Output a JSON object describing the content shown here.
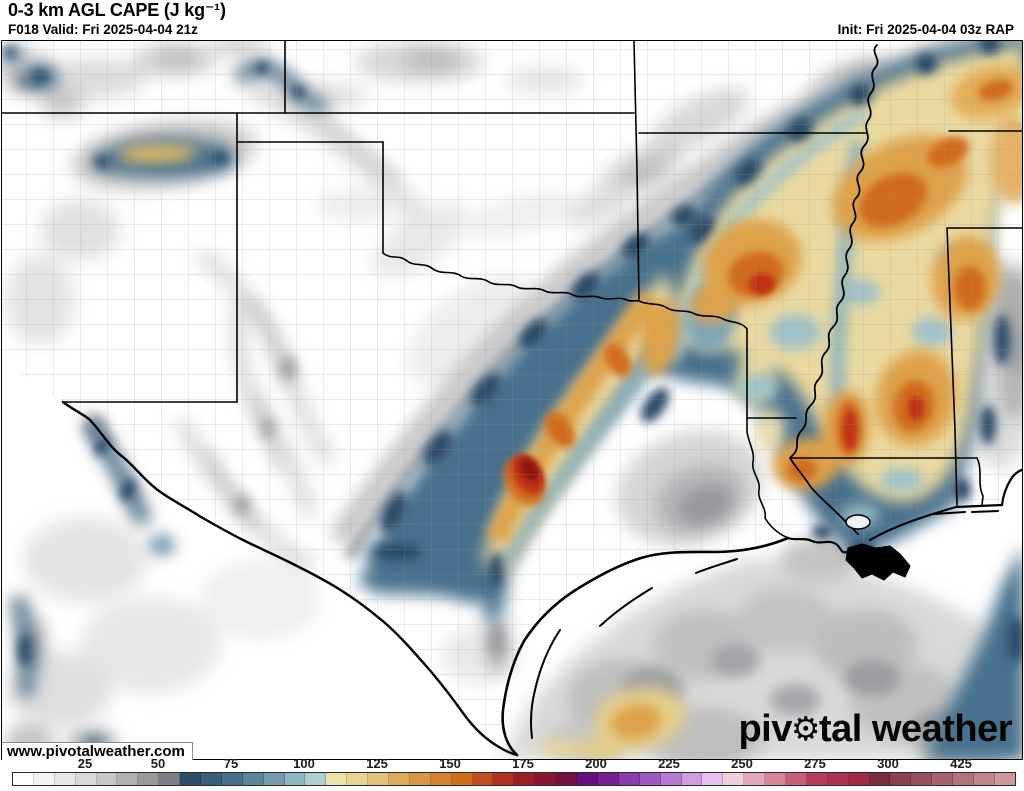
{
  "header": {
    "title": "0-3 km AGL CAPE (J kg⁻¹)",
    "valid": "F018 Valid: Fri 2025-04-04 21z",
    "init": "Init: Fri 2025-04-04 03z RAP"
  },
  "watermark": "www.pivotalweather.com",
  "logo": {
    "prefix": "piv",
    "gear_icon": "⚙",
    "suffix": "tal weather"
  },
  "colorbar": {
    "ticks": [
      "25",
      "50",
      "75",
      "100",
      "125",
      "150",
      "175",
      "200",
      "225",
      "250",
      "275",
      "300",
      "425"
    ],
    "segments": [
      "#ffffff",
      "#f3f3f3",
      "#e7e7e7",
      "#d9d9d9",
      "#c7c7c7",
      "#b1b1b1",
      "#999999",
      "#7b7f85",
      "#2e4e6a",
      "#3a5d7a",
      "#49708b",
      "#5d8598",
      "#759aa9",
      "#90b6bd",
      "#aecdd0",
      "#e9e3aa",
      "#e7d492",
      "#e2c076",
      "#dcab5c",
      "#d79546",
      "#d28230",
      "#cd6e1a",
      "#c44e1e",
      "#b23020",
      "#9e2026",
      "#871732",
      "#73103e",
      "#621082",
      "#762097",
      "#8b3bad",
      "#a159c2",
      "#b77ad3",
      "#cf9ce2",
      "#e4c0ef",
      "#eed0dc",
      "#e2aab8",
      "#d58497",
      "#c75f79",
      "#b93b5b",
      "#ae3251",
      "#a22a47",
      "#7c2c3e",
      "#8a3f50",
      "#97505f",
      "#a4606d",
      "#b1727c",
      "#be858c",
      "#cb999e"
    ]
  }
}
